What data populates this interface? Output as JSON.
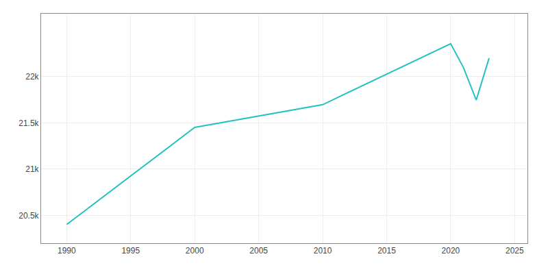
{
  "chart_data": {
    "type": "line",
    "x": [
      1990,
      2000,
      2010,
      2020,
      2021,
      2022,
      2023
    ],
    "values": [
      20402,
      21451,
      21697,
      22356,
      22098,
      21747,
      22200
    ],
    "color": "#25C0C0",
    "xlim": [
      1988,
      2026
    ],
    "xticks": [
      1990,
      1995,
      2000,
      2005,
      2010,
      2015,
      2020,
      2025
    ],
    "ylim": [
      20200,
      22680
    ],
    "yticks": [
      {
        "value": 20500,
        "label": "20.5k"
      },
      {
        "value": 21000,
        "label": "21k"
      },
      {
        "value": 21500,
        "label": "21.5k"
      },
      {
        "value": 22000,
        "label": "22k"
      }
    ],
    "grid": true
  }
}
